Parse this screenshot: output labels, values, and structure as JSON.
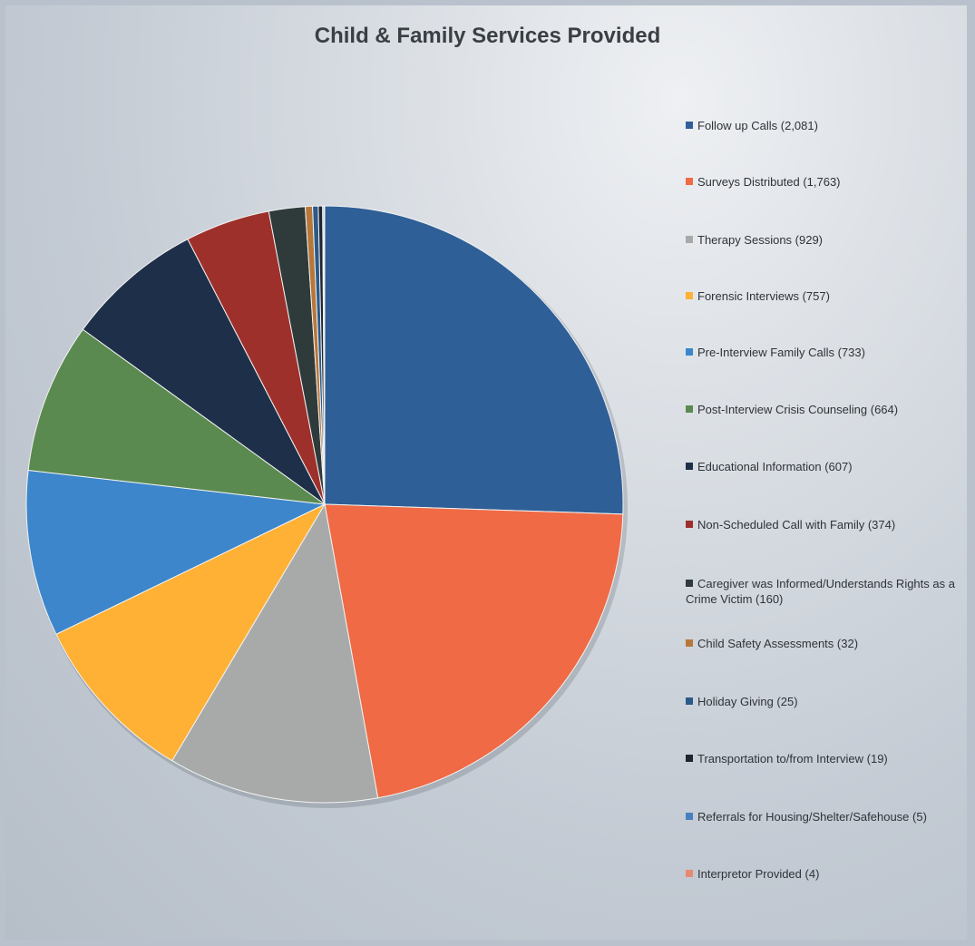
{
  "chart_data": {
    "type": "pie",
    "title": "Child & Family Services Provided",
    "legend_position": "right",
    "start_angle": "12 o'clock, clockwise",
    "series": [
      {
        "name": "Child & Family Services Provided",
        "slices": [
          {
            "label": "Follow up Calls (2,081)",
            "value": 2081,
            "color": "#2f5f97"
          },
          {
            "label": "Surveys Distributed (1,763)",
            "value": 1763,
            "color": "#ef6a45"
          },
          {
            "label": "Therapy Sessions (929)",
            "value": 929,
            "color": "#a7aaa8"
          },
          {
            "label": "Forensic Interviews (757)",
            "value": 757,
            "color": "#ffb135"
          },
          {
            "label": "Pre-Interview Family Calls (733)",
            "value": 733,
            "color": "#3d86cb"
          },
          {
            "label": "Post-Interview Crisis Counseling (664)",
            "value": 664,
            "color": "#5a8a4f"
          },
          {
            "label": "Educational Information (607)",
            "value": 607,
            "color": "#1e3049"
          },
          {
            "label": "Non-Scheduled Call with Family (374)",
            "value": 374,
            "color": "#9e302c"
          },
          {
            "label": "Caregiver was Informed/Understands Rights as a Crime Victim (160)",
            "value": 160,
            "color": "#2f3b3a"
          },
          {
            "label": "Child Safety Assessments (32)",
            "value": 32,
            "color": "#b8773a"
          },
          {
            "label": "Holiday Giving (25)",
            "value": 25,
            "color": "#2b5a8a"
          },
          {
            "label": "Transportation to/from Interview (19)",
            "value": 19,
            "color": "#1d2530"
          },
          {
            "label": "Referrals for Housing/Shelter/Safehouse (5)",
            "value": 5,
            "color": "#4a7fbf"
          },
          {
            "label": "Interpretor Provided (4)",
            "value": 4,
            "color": "#e88a70"
          }
        ]
      }
    ]
  }
}
